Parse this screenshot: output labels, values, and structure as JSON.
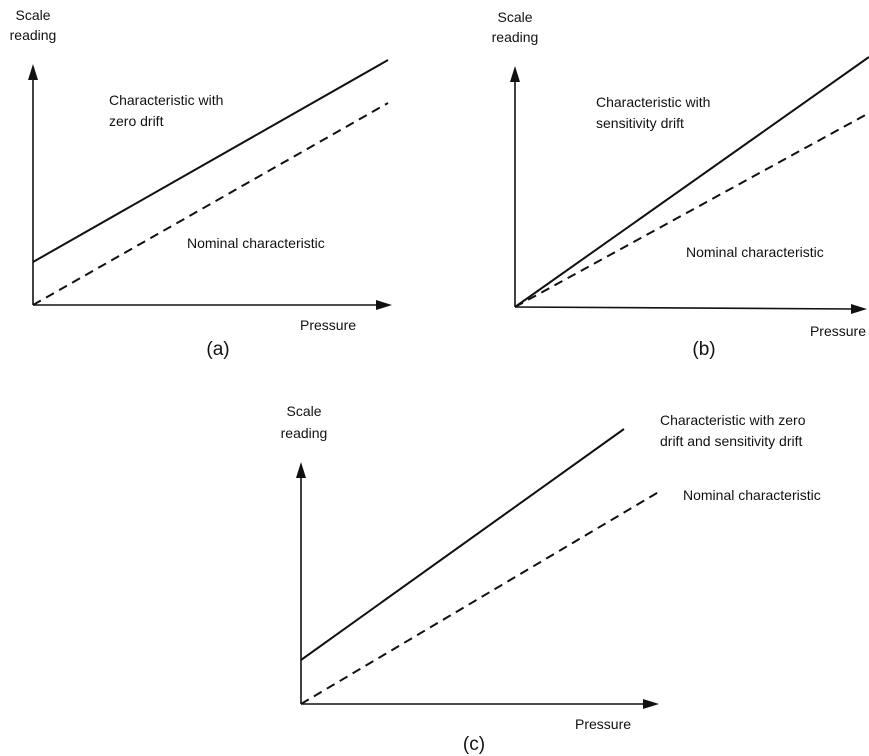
{
  "panels": [
    {
      "axis_y_label_line1": "Scale",
      "axis_y_label_line2": "reading",
      "axis_x_label": "Pressure",
      "drift_label_line1": "Characteristic with",
      "drift_label_line2": "zero drift",
      "nominal_label": "Nominal characteristic",
      "caption": "(a)"
    },
    {
      "axis_y_label_line1": "Scale",
      "axis_y_label_line2": "reading",
      "axis_x_label": "Pressure",
      "drift_label_line1": "Characteristic with",
      "drift_label_line2": "sensitivity drift",
      "nominal_label": "Nominal characteristic",
      "caption": "(b)"
    },
    {
      "axis_y_label_line1": "Scale",
      "axis_y_label_line2": "reading",
      "axis_x_label": "Pressure",
      "drift_label_line1": "Characteristic with zero",
      "drift_label_line2": "drift and sensitivity drift",
      "nominal_label": "Nominal characteristic",
      "caption": "(c)"
    }
  ]
}
